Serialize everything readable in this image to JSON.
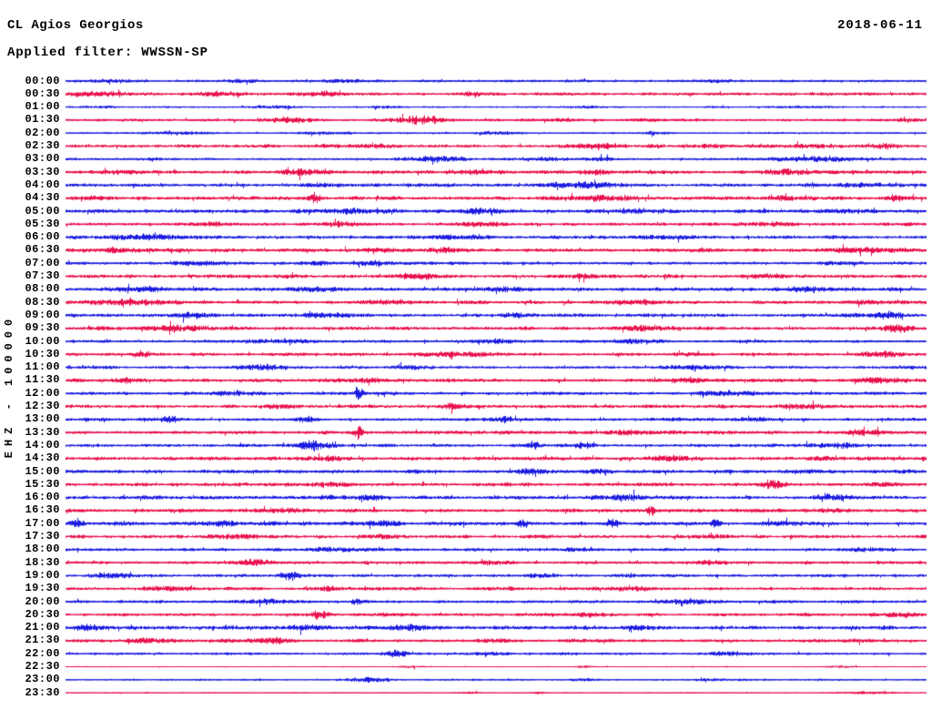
{
  "header": {
    "station": "CL Agios Georgios",
    "date": "2018-06-11",
    "filter": "Applied filter: WWSSN-SP"
  },
  "y_axis_label": "EHZ - 100000",
  "colors": {
    "blue": "#1A1AE0",
    "red": "#E8104D",
    "text": "#000000",
    "background": "#FFFFFF"
  },
  "chart_data": {
    "type": "line",
    "subtype": "helicorder_day_plot",
    "title": "CL Agios Georgios",
    "date": "2018-06-11",
    "applied_filter": "WWSSN-SP",
    "ylabel": "EHZ - 100000",
    "minutes_per_trace": 30,
    "trace_color_cycle": [
      "blue",
      "red"
    ],
    "legend_position": "none",
    "grid": false,
    "traces": [
      {
        "time": "00:00",
        "color": "blue",
        "amp": 1.2,
        "bursts": [
          [
            0.05,
            0.9,
            0.03
          ],
          [
            0.2,
            1.0,
            0.02
          ],
          [
            0.33,
            0.8,
            0.02
          ],
          [
            0.75,
            0.6,
            0.03
          ]
        ]
      },
      {
        "time": "00:30",
        "color": "red",
        "amp": 1.5,
        "bursts": [
          [
            0.04,
            1.4,
            0.04
          ],
          [
            0.18,
            1.0,
            0.03
          ],
          [
            0.3,
            1.2,
            0.03
          ],
          [
            0.47,
            0.8,
            0.02
          ]
        ]
      },
      {
        "time": "01:00",
        "color": "blue",
        "amp": 0.9,
        "bursts": [
          [
            0.04,
            0.7,
            0.02
          ],
          [
            0.24,
            0.9,
            0.03
          ],
          [
            0.37,
            0.8,
            0.02
          ],
          [
            0.6,
            0.6,
            0.02
          ],
          [
            0.86,
            0.7,
            0.03
          ]
        ]
      },
      {
        "time": "01:30",
        "color": "red",
        "amp": 1.3,
        "bursts": [
          [
            0.26,
            2.0,
            0.025
          ],
          [
            0.41,
            2.8,
            0.03
          ],
          [
            0.57,
            1.0,
            0.02
          ],
          [
            0.67,
            0.9,
            0.02
          ],
          [
            0.97,
            0.8,
            0.02
          ]
        ]
      },
      {
        "time": "02:00",
        "color": "blue",
        "amp": 0.9,
        "bursts": [
          [
            0.13,
            0.9,
            0.04
          ],
          [
            0.3,
            0.9,
            0.03
          ],
          [
            0.5,
            1.1,
            0.025
          ],
          [
            0.68,
            0.6,
            0.02
          ]
        ]
      },
      {
        "time": "02:30",
        "color": "red",
        "amp": 1.6,
        "bursts": [
          [
            0.36,
            1.3,
            0.02
          ],
          [
            0.62,
            1.3,
            0.03
          ],
          [
            0.75,
            1.0,
            0.02
          ],
          [
            0.86,
            1.3,
            0.03
          ],
          [
            0.95,
            1.2,
            0.02
          ]
        ]
      },
      {
        "time": "03:00",
        "color": "blue",
        "amp": 1.3,
        "bursts": [
          [
            0.43,
            1.7,
            0.035
          ],
          [
            0.56,
            1.3,
            0.02
          ],
          [
            0.62,
            1.2,
            0.015
          ],
          [
            0.87,
            1.6,
            0.05
          ]
        ]
      },
      {
        "time": "03:30",
        "color": "red",
        "amp": 1.8,
        "bursts": [
          [
            0.06,
            1.3,
            0.02
          ],
          [
            0.28,
            1.8,
            0.025
          ],
          [
            0.47,
            1.3,
            0.02
          ],
          [
            0.62,
            1.3,
            0.02
          ],
          [
            0.84,
            1.3,
            0.03
          ]
        ]
      },
      {
        "time": "04:00",
        "color": "blue",
        "amp": 1.7,
        "bursts": [
          [
            0.3,
            1.1,
            0.03
          ],
          [
            0.6,
            1.7,
            0.05
          ],
          [
            0.92,
            1.1,
            0.03
          ]
        ]
      },
      {
        "time": "04:30",
        "color": "red",
        "amp": 1.7,
        "bursts": [
          [
            0.29,
            3.6,
            0.006
          ],
          [
            0.62,
            1.4,
            0.04
          ],
          [
            0.83,
            1.2,
            0.03
          ],
          [
            0.97,
            1.3,
            0.02
          ]
        ]
      },
      {
        "time": "05:00",
        "color": "blue",
        "amp": 1.8,
        "bursts": [
          [
            0.33,
            1.4,
            0.035
          ],
          [
            0.48,
            1.6,
            0.02
          ],
          [
            0.67,
            1.3,
            0.03
          ],
          [
            0.9,
            1.0,
            0.02
          ]
        ]
      },
      {
        "time": "05:30",
        "color": "red",
        "amp": 1.6,
        "bursts": [
          [
            0.17,
            1.3,
            0.02
          ],
          [
            0.32,
            1.8,
            0.02
          ],
          [
            0.48,
            1.3,
            0.02
          ],
          [
            0.82,
            1.3,
            0.03
          ]
        ]
      },
      {
        "time": "06:00",
        "color": "blue",
        "amp": 1.7,
        "bursts": [
          [
            0.09,
            1.8,
            0.035
          ],
          [
            0.45,
            1.3,
            0.035
          ],
          [
            0.7,
            1.1,
            0.03
          ]
        ]
      },
      {
        "time": "06:30",
        "color": "red",
        "amp": 1.7,
        "bursts": [
          [
            0.05,
            1.4,
            0.035
          ],
          [
            0.37,
            1.4,
            0.02
          ],
          [
            0.44,
            1.8,
            0.02
          ],
          [
            0.92,
            1.6,
            0.045
          ]
        ]
      },
      {
        "time": "07:00",
        "color": "blue",
        "amp": 1.5,
        "bursts": [
          [
            0.16,
            1.3,
            0.03
          ],
          [
            0.29,
            1.4,
            0.02
          ],
          [
            0.36,
            1.3,
            0.02
          ],
          [
            0.9,
            1.0,
            0.025
          ]
        ]
      },
      {
        "time": "07:30",
        "color": "red",
        "amp": 1.7,
        "bursts": [
          [
            0.41,
            2.0,
            0.025
          ],
          [
            0.6,
            1.1,
            0.02
          ],
          [
            0.82,
            1.4,
            0.03
          ]
        ]
      },
      {
        "time": "08:00",
        "color": "blue",
        "amp": 1.7,
        "bursts": [
          [
            0.09,
            1.3,
            0.03
          ],
          [
            0.29,
            1.4,
            0.03
          ],
          [
            0.51,
            1.3,
            0.03
          ],
          [
            0.86,
            1.3,
            0.03
          ]
        ]
      },
      {
        "time": "08:30",
        "color": "red",
        "amp": 1.7,
        "bursts": [
          [
            0.08,
            1.5,
            0.045
          ],
          [
            0.37,
            1.4,
            0.03
          ],
          [
            0.67,
            1.3,
            0.03
          ],
          [
            0.93,
            1.1,
            0.02
          ]
        ]
      },
      {
        "time": "09:00",
        "color": "blue",
        "amp": 1.7,
        "bursts": [
          [
            0.14,
            1.9,
            0.02
          ],
          [
            0.3,
            1.4,
            0.03
          ],
          [
            0.52,
            1.4,
            0.02
          ],
          [
            0.955,
            3.2,
            0.015
          ]
        ]
      },
      {
        "time": "09:30",
        "color": "red",
        "amp": 1.7,
        "bursts": [
          [
            0.13,
            2.0,
            0.035
          ],
          [
            0.67,
            1.3,
            0.03
          ],
          [
            0.965,
            2.9,
            0.018
          ]
        ]
      },
      {
        "time": "10:00",
        "color": "blue",
        "amp": 1.5,
        "bursts": [
          [
            0.24,
            1.2,
            0.03
          ],
          [
            0.5,
            1.0,
            0.02
          ],
          [
            0.67,
            1.2,
            0.03
          ]
        ]
      },
      {
        "time": "10:30",
        "color": "red",
        "amp": 1.5,
        "bursts": [
          [
            0.09,
            2.4,
            0.012
          ],
          [
            0.45,
            1.3,
            0.05
          ],
          [
            0.72,
            1.0,
            0.02
          ],
          [
            0.95,
            1.9,
            0.025
          ]
        ]
      },
      {
        "time": "11:00",
        "color": "blue",
        "amp": 1.5,
        "bursts": [
          [
            0.23,
            1.9,
            0.025
          ],
          [
            0.4,
            1.3,
            0.02
          ],
          [
            0.73,
            1.1,
            0.03
          ]
        ]
      },
      {
        "time": "11:30",
        "color": "red",
        "amp": 1.7,
        "bursts": [
          [
            0.07,
            1.4,
            0.02
          ],
          [
            0.35,
            1.3,
            0.03
          ],
          [
            0.72,
            1.3,
            0.03
          ],
          [
            0.94,
            1.5,
            0.025
          ]
        ]
      },
      {
        "time": "12:00",
        "color": "blue",
        "amp": 1.5,
        "bursts": [
          [
            0.2,
            1.1,
            0.03
          ],
          [
            0.34,
            6.0,
            0.0045
          ],
          [
            0.77,
            1.7,
            0.035
          ]
        ]
      },
      {
        "time": "12:30",
        "color": "red",
        "amp": 1.7,
        "bursts": [
          [
            0.25,
            1.2,
            0.03
          ],
          [
            0.45,
            2.4,
            0.014
          ],
          [
            0.85,
            1.2,
            0.03
          ]
        ]
      },
      {
        "time": "13:00",
        "color": "blue",
        "amp": 1.5,
        "bursts": [
          [
            0.12,
            2.1,
            0.012
          ],
          [
            0.28,
            2.1,
            0.012
          ],
          [
            0.51,
            2.1,
            0.012
          ],
          [
            0.8,
            1.0,
            0.02
          ]
        ]
      },
      {
        "time": "13:30",
        "color": "red",
        "amp": 1.7,
        "bursts": [
          [
            0.34,
            4.8,
            0.0045
          ],
          [
            0.66,
            1.5,
            0.02
          ],
          [
            0.93,
            1.3,
            0.03
          ]
        ]
      },
      {
        "time": "14:00",
        "color": "blue",
        "amp": 1.5,
        "bursts": [
          [
            0.285,
            3.6,
            0.018
          ],
          [
            0.545,
            2.6,
            0.008
          ],
          [
            0.6,
            1.9,
            0.013
          ],
          [
            0.9,
            1.4,
            0.03
          ]
        ]
      },
      {
        "time": "14:30",
        "color": "red",
        "amp": 1.7,
        "bursts": [
          [
            0.3,
            1.2,
            0.03
          ],
          [
            0.7,
            1.7,
            0.025
          ],
          [
            0.88,
            1.1,
            0.02
          ]
        ]
      },
      {
        "time": "15:00",
        "color": "blue",
        "amp": 1.7,
        "bursts": [
          [
            0.54,
            1.5,
            0.025
          ],
          [
            0.62,
            1.4,
            0.02
          ],
          [
            0.85,
            1.1,
            0.02
          ]
        ]
      },
      {
        "time": "15:30",
        "color": "red",
        "amp": 1.7,
        "bursts": [
          [
            0.3,
            1.2,
            0.03
          ],
          [
            0.82,
            2.7,
            0.016
          ],
          [
            0.95,
            1.2,
            0.02
          ]
        ]
      },
      {
        "time": "16:00",
        "color": "blue",
        "amp": 1.7,
        "bursts": [
          [
            0.35,
            1.2,
            0.02
          ],
          [
            0.65,
            1.7,
            0.035
          ],
          [
            0.9,
            1.5,
            0.025
          ]
        ]
      },
      {
        "time": "16:30",
        "color": "red",
        "amp": 1.7,
        "bursts": [
          [
            0.25,
            1.2,
            0.03
          ],
          [
            0.68,
            4.0,
            0.004
          ],
          [
            0.88,
            1.2,
            0.02
          ]
        ]
      },
      {
        "time": "17:00",
        "color": "blue",
        "amp": 1.7,
        "bursts": [
          [
            0.012,
            3.2,
            0.007
          ],
          [
            0.18,
            1.5,
            0.02
          ],
          [
            0.36,
            1.4,
            0.025
          ],
          [
            0.53,
            3.2,
            0.006
          ],
          [
            0.635,
            3.6,
            0.0055
          ],
          [
            0.755,
            3.6,
            0.0055
          ],
          [
            0.84,
            1.3,
            0.02
          ]
        ]
      },
      {
        "time": "17:30",
        "color": "red",
        "amp": 1.6,
        "bursts": [
          [
            0.2,
            1.5,
            0.03
          ],
          [
            0.37,
            1.4,
            0.025
          ],
          [
            0.75,
            1.1,
            0.02
          ]
        ]
      },
      {
        "time": "18:00",
        "color": "blue",
        "amp": 1.5,
        "bursts": [
          [
            0.31,
            1.3,
            0.025
          ],
          [
            0.6,
            1.0,
            0.02
          ],
          [
            0.93,
            1.2,
            0.025
          ]
        ]
      },
      {
        "time": "18:30",
        "color": "red",
        "amp": 1.5,
        "bursts": [
          [
            0.22,
            2.2,
            0.018
          ],
          [
            0.5,
            1.0,
            0.02
          ],
          [
            0.75,
            1.3,
            0.025
          ]
        ]
      },
      {
        "time": "19:00",
        "color": "blue",
        "amp": 1.5,
        "bursts": [
          [
            0.05,
            1.4,
            0.025
          ],
          [
            0.26,
            3.4,
            0.012
          ],
          [
            0.55,
            1.0,
            0.02
          ]
        ]
      },
      {
        "time": "19:30",
        "color": "red",
        "amp": 1.5,
        "bursts": [
          [
            0.12,
            1.2,
            0.03
          ],
          [
            0.305,
            1.7,
            0.012
          ],
          [
            0.66,
            1.2,
            0.03
          ]
        ]
      },
      {
        "time": "20:00",
        "color": "blue",
        "amp": 1.5,
        "bursts": [
          [
            0.23,
            1.2,
            0.03
          ],
          [
            0.337,
            2.8,
            0.007
          ],
          [
            0.72,
            1.3,
            0.03
          ]
        ]
      },
      {
        "time": "20:30",
        "color": "red",
        "amp": 1.5,
        "bursts": [
          [
            0.295,
            3.3,
            0.011
          ],
          [
            0.6,
            1.1,
            0.03
          ],
          [
            0.97,
            1.0,
            0.02
          ]
        ]
      },
      {
        "time": "21:00",
        "color": "blue",
        "amp": 1.7,
        "bursts": [
          [
            0.025,
            2.3,
            0.013
          ],
          [
            0.28,
            1.4,
            0.02
          ],
          [
            0.4,
            1.7,
            0.03
          ],
          [
            0.67,
            1.1,
            0.02
          ]
        ]
      },
      {
        "time": "21:30",
        "color": "red",
        "amp": 1.5,
        "bursts": [
          [
            0.1,
            1.5,
            0.035
          ],
          [
            0.24,
            1.9,
            0.018
          ],
          [
            0.5,
            1.0,
            0.02
          ],
          [
            0.92,
            1.1,
            0.02
          ]
        ]
      },
      {
        "time": "22:00",
        "color": "blue",
        "amp": 1.2,
        "bursts": [
          [
            0.385,
            2.3,
            0.013
          ],
          [
            0.5,
            1.3,
            0.018
          ],
          [
            0.77,
            1.0,
            0.025
          ]
        ]
      },
      {
        "time": "22:30",
        "color": "red",
        "amp": 0.55,
        "bursts": [
          [
            0.4,
            0.7,
            0.015
          ],
          [
            0.6,
            0.5,
            0.01
          ],
          [
            0.9,
            0.6,
            0.02
          ]
        ]
      },
      {
        "time": "23:00",
        "color": "blue",
        "amp": 0.9,
        "bursts": [
          [
            0.355,
            1.8,
            0.022
          ],
          [
            0.6,
            0.9,
            0.015
          ],
          [
            0.75,
            0.7,
            0.02
          ]
        ]
      },
      {
        "time": "23:30",
        "color": "red",
        "amp": 0.55,
        "bursts": [
          [
            0.47,
            0.7,
            0.012
          ],
          [
            0.55,
            0.7,
            0.008
          ],
          [
            0.93,
            0.9,
            0.035
          ]
        ]
      }
    ]
  }
}
